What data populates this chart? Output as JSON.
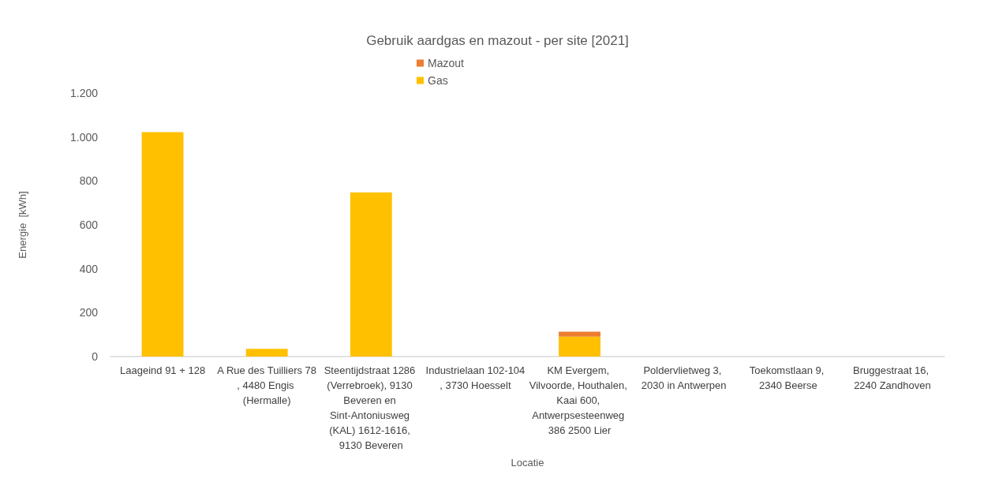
{
  "chart_data": {
    "type": "bar",
    "title": "Gebruik aardgas en mazout - per site [2021]",
    "xlabel": "Locatie",
    "ylabel": "Energie  [kWh]",
    "categories": [
      "Laageind 91 + 128",
      "A Rue des Tuilliers 78, 4480 Engis (Hermalle)",
      "Steentijdstraat 1286 (Verrebroek), 9130 Beveren en Sint-Antoniusweg (KAL) 1612-1616, 9130 Beveren",
      "Industrielaan 102-104, 3730 Hoesselt",
      "KM Evergem, Vilvoorde, Houthalen, Kaai 600, Antwerpsesteenweg 386 2500 Lier",
      "Poldervlietweg 3, 2030 in Antwerpen",
      "Toekomstlaan 9, 2340 Beerse",
      "Bruggestraat 16, 2240 Zandhoven"
    ],
    "stacked": true,
    "series": [
      {
        "name": "Gas",
        "color": "#ffc000",
        "values": [
          1022,
          35,
          747,
          0,
          91,
          0,
          0,
          0
        ]
      },
      {
        "name": "Mazout",
        "color": "#ed7d31",
        "values": [
          0,
          0,
          0,
          0,
          22,
          0,
          0,
          0
        ]
      }
    ],
    "ylim": [
      0,
      1200
    ],
    "yticks": [
      0,
      200,
      400,
      600,
      800,
      {
        "value": 1000,
        "label": "1.000"
      },
      {
        "value": 1200,
        "label": "1.200"
      }
    ],
    "grid": false,
    "legend": "top"
  }
}
